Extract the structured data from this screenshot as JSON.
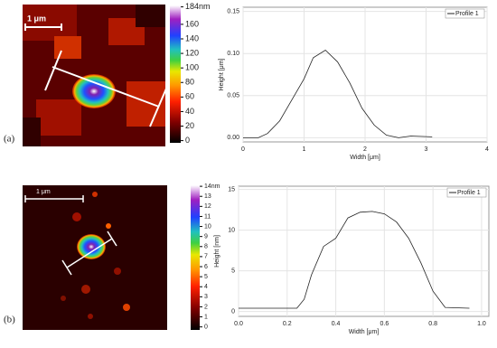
{
  "panel_labels": [
    "(a)",
    "(b)"
  ],
  "images": [
    {
      "scale_bar": "1 μm",
      "colorbar": {
        "lim": [
          -3,
          186
        ],
        "ticks": [
          0,
          20,
          40,
          60,
          80,
          100,
          120,
          140,
          160,
          {
            "value": 184,
            "label": "184nm"
          }
        ]
      }
    },
    {
      "scale_bar": "1 μm",
      "colorbar": {
        "lim": [
          -0.3,
          14.1
        ],
        "ticks": [
          0,
          1,
          2,
          3,
          4,
          5,
          6,
          7,
          8,
          9,
          10,
          11,
          12,
          13,
          {
            "value": 14,
            "label": "14nm"
          }
        ]
      }
    }
  ],
  "chart_data": [
    {
      "type": "line",
      "x_label": "Width [μm]",
      "y_label": "Height [μm]",
      "series": [
        {
          "name": "Profile 1",
          "color": "#222222",
          "x": [
            0,
            0.25,
            0.4,
            0.6,
            0.8,
            1.0,
            1.15,
            1.35,
            1.55,
            1.75,
            1.95,
            2.15,
            2.35,
            2.55,
            2.75,
            3.1
          ],
          "values": [
            0,
            0,
            0.005,
            0.02,
            0.045,
            0.07,
            0.095,
            0.104,
            0.09,
            0.065,
            0.035,
            0.015,
            0.003,
            0,
            0.002,
            0.001
          ]
        }
      ],
      "xlim": [
        0,
        4
      ],
      "xticks": [
        0,
        1,
        2,
        3,
        4
      ],
      "ylim": [
        -0.005,
        0.155
      ],
      "yticks": [
        {
          "value": 0,
          "label": "0.00"
        },
        {
          "value": 0.05,
          "label": "0.05"
        },
        {
          "value": 0.1,
          "label": "0.10"
        },
        {
          "value": 0.15,
          "label": "0.15"
        }
      ],
      "legend": "top-right",
      "grid": true
    },
    {
      "type": "line",
      "x_label": "Width [μm]",
      "y_label": "Height [nm]",
      "series": [
        {
          "name": "Profile 1",
          "color": "#222222",
          "x": [
            0,
            0.24,
            0.27,
            0.3,
            0.35,
            0.4,
            0.45,
            0.5,
            0.55,
            0.6,
            0.65,
            0.7,
            0.75,
            0.8,
            0.85,
            0.95
          ],
          "values": [
            0.4,
            0.4,
            1.5,
            4.5,
            8,
            9,
            11.5,
            12.2,
            12.3,
            12,
            11,
            9,
            6,
            2.5,
            0.5,
            0.4
          ]
        }
      ],
      "xlim": [
        0,
        1.03
      ],
      "xticks": [
        {
          "value": 0,
          "label": "0.0"
        },
        0.2,
        0.4,
        0.6,
        0.8,
        {
          "value": 1,
          "label": "1.0"
        }
      ],
      "ylim": [
        -0.6,
        15.4
      ],
      "yticks": [
        0,
        5,
        10,
        15
      ],
      "legend": "top-right",
      "grid": true
    }
  ]
}
